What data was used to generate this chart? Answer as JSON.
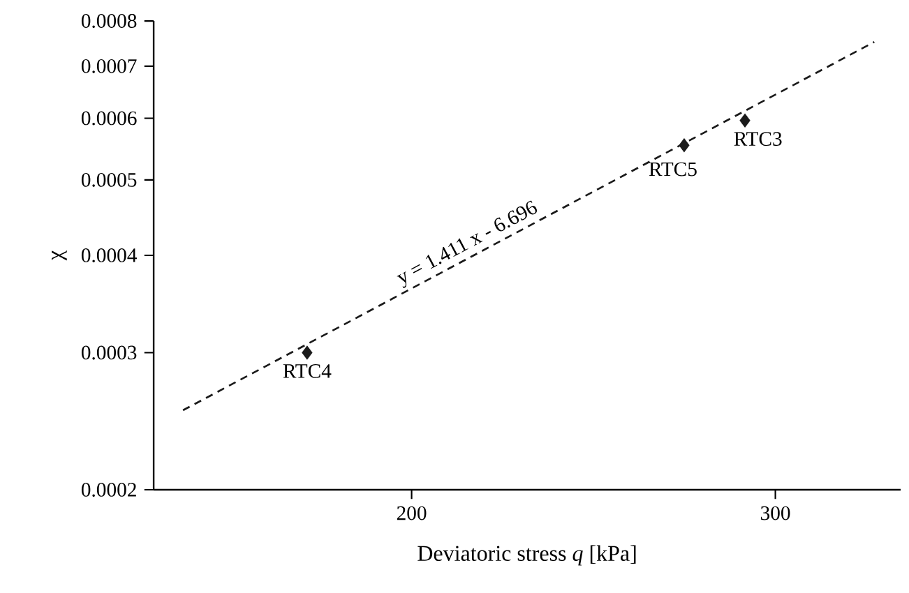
{
  "chart_data": {
    "type": "scatter",
    "xlabel": "Deviatoric stress *q* [kPa]",
    "ylabel": "χ",
    "log": "xy",
    "xlim": [
      150,
      345
    ],
    "ylim": [
      0.0002,
      0.0008
    ],
    "xticks": [
      200,
      300
    ],
    "yticks": [
      0.0002,
      0.0003,
      0.0004,
      0.0005,
      0.0006,
      0.0007,
      0.0008
    ],
    "series": [
      {
        "marker": "diamond",
        "color": "#1a1a1a",
        "x": [
          178,
          271,
          290
        ],
        "values": [
          0.0003,
          0.000554,
          0.000596
        ]
      },
      {
        "type": "line",
        "line_style": "dashed",
        "marker": "none",
        "color": "#1a1a1a",
        "x": [
          155,
          335
        ],
        "values": [
          0.000253,
          0.000752
        ]
      }
    ],
    "annotations": [
      {
        "text": "RTC4",
        "x": 178,
        "y": 0.0003
      },
      {
        "text": "RTC5",
        "x": 271,
        "y": 0.000554
      },
      {
        "text": "RTC3",
        "x": 290,
        "y": 0.000596
      },
      {
        "text": "y = 1.411 x - 6.696",
        "x": 215,
        "y": 0.000394
      }
    ]
  }
}
